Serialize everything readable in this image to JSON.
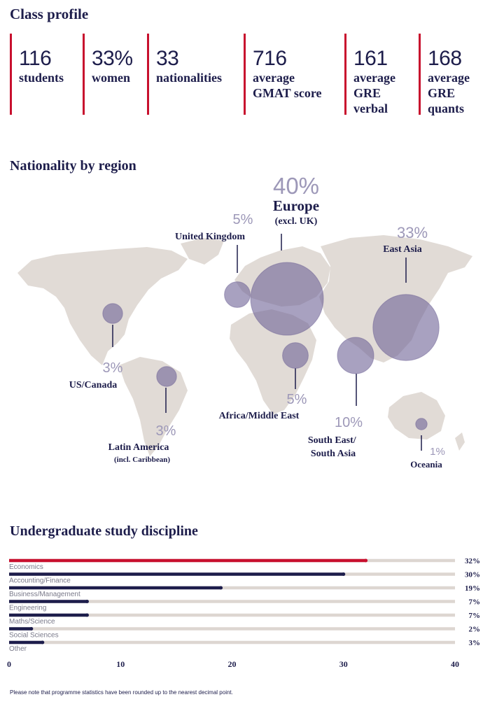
{
  "class_profile": {
    "title": "Class profile",
    "stats": [
      {
        "value": "116",
        "label": "students"
      },
      {
        "value": "33%",
        "label": "women"
      },
      {
        "value": "33",
        "label": "nationalities"
      },
      {
        "value": "716",
        "label": "average\nGMAT score"
      },
      {
        "value": "161",
        "label": "average\nGRE\nverbal"
      },
      {
        "value": "168",
        "label": "average\nGRE\nquants"
      }
    ],
    "accent_color": "#c8102e",
    "text_color": "#1d1d4b"
  },
  "nationality": {
    "title": "Nationality by region"
  },
  "discipline": {
    "title": "Undergraduate study discipline"
  },
  "footnote": "Please note that programme statistics have been rounded up to the nearest decimal point.",
  "chart_data": [
    {
      "type": "bubble-map",
      "title": "Nationality by region",
      "regions": [
        {
          "name": "Europe",
          "sub": "(excl. UK)",
          "pct_label": "40%",
          "value": 40
        },
        {
          "name": "United Kingdom",
          "sub": "",
          "pct_label": "5%",
          "value": 5
        },
        {
          "name": "East Asia",
          "sub": "",
          "pct_label": "33%",
          "value": 33
        },
        {
          "name": "US/Canada",
          "sub": "",
          "pct_label": "3%",
          "value": 3
        },
        {
          "name": "Latin America",
          "sub": "(incl. Caribbean)",
          "pct_label": "3%",
          "value": 3
        },
        {
          "name": "Africa/Middle East",
          "sub": "",
          "pct_label": "5%",
          "value": 5
        },
        {
          "name": "South East/\nSouth Asia",
          "sub": "",
          "pct_label": "10%",
          "value": 10
        },
        {
          "name": "Oceania",
          "sub": "",
          "pct_label": "1%",
          "value": 1
        }
      ],
      "bubble_color": "#6e6296",
      "land_color": "#e1dbd6"
    },
    {
      "type": "bar",
      "orientation": "horizontal",
      "title": "Undergraduate study discipline",
      "categories": [
        "Economics",
        "Accounting/Finance",
        "Business/Management",
        "Engineering",
        "Maths/Science",
        "Social Sciences",
        "Other"
      ],
      "values": [
        32,
        30,
        19,
        7,
        7,
        2,
        3
      ],
      "value_labels": [
        "32%",
        "30%",
        "19%",
        "7%",
        "7%",
        "2%",
        "3%"
      ],
      "xlim": [
        0,
        40
      ],
      "xticks": [
        "0",
        "10",
        "20",
        "30",
        "40"
      ],
      "highlight_color": "#c8102e",
      "bar_color": "#1d1d4b",
      "track_color": "#ddd6d1"
    }
  ]
}
